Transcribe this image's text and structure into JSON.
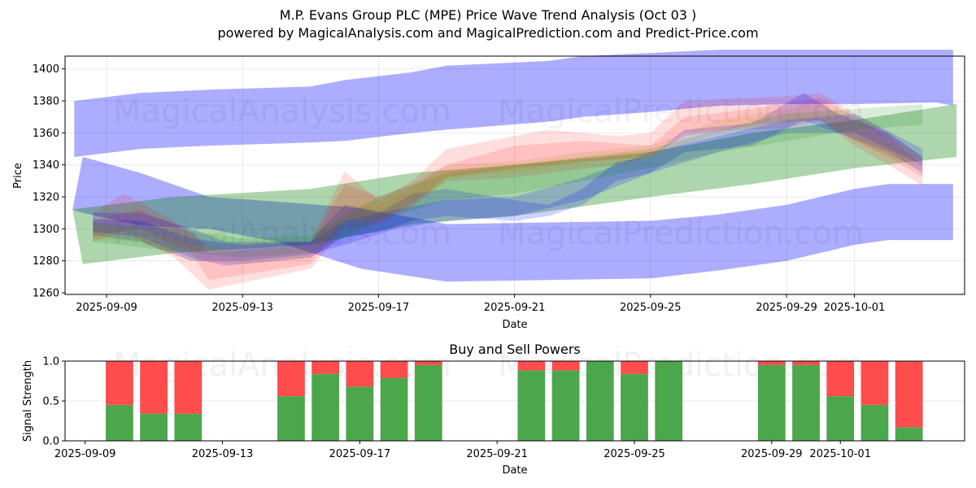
{
  "chart_data": [
    {
      "type": "area",
      "title": "M.P. Evans Group PLC (MPE) Price Wave Trend Analysis (Oct 03 )",
      "subtitle": "powered by MagicalAnalysis.com and MagicalPrediction.com and Predict-Price.com",
      "xlabel": "Date",
      "ylabel": "Price",
      "x_origin_date": "2025-09-09",
      "x_unit": "days since 2025-09-09",
      "xlim": [
        -1.22,
        25.24
      ],
      "ylim": [
        1259,
        1408
      ],
      "grid": true,
      "yticks": [
        1260,
        1280,
        1300,
        1320,
        1340,
        1360,
        1380,
        1400
      ],
      "xticks": [
        {
          "offset": 0,
          "label": "2025-09-09"
        },
        {
          "offset": 4,
          "label": "2025-09-13"
        },
        {
          "offset": 8,
          "label": "2025-09-17"
        },
        {
          "offset": 12,
          "label": "2025-09-21"
        },
        {
          "offset": 16,
          "label": "2025-09-25"
        },
        {
          "offset": 20,
          "label": "2025-09-29"
        },
        {
          "offset": 22,
          "label": "2025-10-01"
        }
      ],
      "watermarks": [
        "MagicalAnalysis.com",
        "MagicalPrediction.com"
      ],
      "bands": [
        {
          "name": "upper-wave-band",
          "color": "#0000ff",
          "opacity": 0.32,
          "x": [
            -0.95,
            1,
            3,
            6,
            7,
            9,
            10,
            13,
            14,
            16,
            18,
            20,
            22,
            24.4,
            24.9
          ],
          "upper": [
            1380,
            1385,
            1387,
            1389,
            1393,
            1398,
            1402,
            1405,
            1408,
            1410,
            1412,
            1412,
            1412,
            1412,
            1412
          ],
          "lower": [
            1345,
            1350,
            1352,
            1354,
            1355,
            1360,
            1362,
            1367,
            1370,
            1373,
            1377,
            1378,
            1378,
            1379,
            1377
          ]
        },
        {
          "name": "lower-wave-band",
          "color": "#0000ff",
          "opacity": 0.32,
          "x": [
            -1.0,
            -0.7,
            1,
            3,
            5,
            7.5,
            10,
            13,
            16,
            18,
            20,
            21,
            22,
            23,
            24.9
          ],
          "upper": [
            1312,
            1345,
            1335,
            1320,
            1317,
            1313,
            1303,
            1304,
            1305,
            1309,
            1315,
            1320,
            1325,
            1328,
            1328
          ],
          "lower": [
            1312,
            1310,
            1302,
            1300,
            1292,
            1275,
            1267,
            1268,
            1269,
            1274,
            1280,
            1285,
            1290,
            1293,
            1293
          ]
        },
        {
          "name": "trend-channel-band",
          "color": "#008000",
          "opacity": 0.32,
          "x": [
            -1.0,
            -0.7,
            2,
            6,
            9,
            12,
            16,
            19,
            22,
            25
          ],
          "upper": [
            1312,
            1313,
            1320,
            1325,
            1335,
            1340,
            1348,
            1360,
            1368,
            1378
          ],
          "lower": [
            1312,
            1278,
            1285,
            1290,
            1303,
            1308,
            1320,
            1328,
            1338,
            1345
          ]
        },
        {
          "name": "price-path-band-red-1",
          "color": "#ff0000",
          "opacity": 0.13,
          "x": [
            -0.4,
            0.5,
            2,
            3,
            6,
            7,
            8,
            9,
            10,
            12,
            13,
            15,
            16,
            17,
            19,
            20,
            21,
            22,
            23,
            24
          ],
          "upper": [
            1310,
            1322,
            1305,
            1290,
            1292,
            1336,
            1318,
            1330,
            1350,
            1358,
            1362,
            1358,
            1360,
            1380,
            1382,
            1383,
            1385,
            1372,
            1360,
            1345
          ],
          "lower": [
            1292,
            1298,
            1282,
            1262,
            1275,
            1300,
            1303,
            1314,
            1330,
            1332,
            1335,
            1340,
            1345,
            1360,
            1362,
            1363,
            1368,
            1352,
            1340,
            1327
          ]
        },
        {
          "name": "price-path-band-red-2",
          "color": "#ff0000",
          "opacity": 0.13,
          "x": [
            -0.4,
            1,
            2.5,
            3,
            6,
            7,
            8,
            9,
            10,
            12,
            14,
            16,
            17,
            19,
            21,
            22,
            23,
            24
          ],
          "upper": [
            1305,
            1312,
            1298,
            1285,
            1290,
            1328,
            1320,
            1328,
            1340,
            1352,
            1355,
            1352,
            1370,
            1375,
            1382,
            1370,
            1358,
            1340
          ],
          "lower": [
            1296,
            1300,
            1285,
            1268,
            1278,
            1305,
            1305,
            1316,
            1332,
            1338,
            1342,
            1345,
            1358,
            1365,
            1368,
            1355,
            1345,
            1332
          ]
        },
        {
          "name": "price-path-band-blue-1",
          "color": "#0000ff",
          "opacity": 0.18,
          "x": [
            -0.4,
            1,
            2.5,
            3.5,
            6,
            7,
            8,
            9,
            10,
            12,
            13,
            14,
            15,
            16,
            17,
            19,
            20.5,
            21.5,
            23,
            24
          ],
          "upper": [
            1310,
            1310,
            1300,
            1292,
            1292,
            1315,
            1310,
            1322,
            1325,
            1318,
            1315,
            1325,
            1342,
            1345,
            1362,
            1366,
            1385,
            1372,
            1360,
            1345
          ],
          "lower": [
            1298,
            1295,
            1282,
            1277,
            1282,
            1295,
            1298,
            1305,
            1308,
            1305,
            1308,
            1315,
            1330,
            1335,
            1348,
            1352,
            1368,
            1360,
            1348,
            1335
          ]
        },
        {
          "name": "price-path-band-blue-2",
          "color": "#0000ff",
          "opacity": 0.18,
          "x": [
            -0.4,
            1,
            2.5,
            4,
            6,
            7,
            8.5,
            10,
            12,
            14,
            16,
            18,
            20,
            22,
            24
          ],
          "upper": [
            1306,
            1305,
            1294,
            1290,
            1292,
            1305,
            1312,
            1318,
            1320,
            1332,
            1348,
            1358,
            1368,
            1372,
            1350
          ],
          "lower": [
            1296,
            1292,
            1280,
            1280,
            1284,
            1290,
            1300,
            1305,
            1308,
            1318,
            1335,
            1348,
            1360,
            1360,
            1340
          ]
        },
        {
          "name": "price-path-band-green-1",
          "color": "#008000",
          "opacity": 0.15,
          "x": [
            -0.4,
            2,
            4,
            6,
            8,
            10,
            12,
            14,
            16,
            18,
            20,
            22,
            24
          ],
          "upper": [
            1304,
            1300,
            1294,
            1296,
            1320,
            1335,
            1340,
            1345,
            1350,
            1362,
            1372,
            1375,
            1378
          ],
          "lower": [
            1292,
            1286,
            1282,
            1285,
            1305,
            1318,
            1322,
            1330,
            1338,
            1348,
            1355,
            1362,
            1365
          ]
        },
        {
          "name": "price-path-band-orange-1",
          "color": "#b8860b",
          "opacity": 0.15,
          "x": [
            -0.4,
            1,
            2.5,
            4,
            6,
            7,
            8,
            9,
            10,
            12,
            14,
            16,
            18,
            20,
            21,
            22.5,
            24
          ],
          "upper": [
            1302,
            1300,
            1290,
            1285,
            1290,
            1315,
            1315,
            1325,
            1340,
            1342,
            1348,
            1352,
            1368,
            1375,
            1378,
            1362,
            1345
          ],
          "lower": [
            1294,
            1292,
            1280,
            1278,
            1282,
            1305,
            1305,
            1315,
            1332,
            1336,
            1342,
            1345,
            1360,
            1368,
            1368,
            1350,
            1338
          ]
        }
      ]
    },
    {
      "type": "bar",
      "title": "Buy and Sell Powers",
      "xlabel": "Date",
      "ylabel": "Signal Strength",
      "x_origin_date": "2025-09-09",
      "xlim": [
        -0.585,
        25.62
      ],
      "ylim": [
        0,
        1.0
      ],
      "grid": true,
      "yticks": [
        {
          "value": 0.0,
          "label": "0.0"
        },
        {
          "value": 0.5,
          "label": "0.5"
        },
        {
          "value": 1.0,
          "label": "1.0"
        }
      ],
      "xticks": [
        {
          "offset": 0,
          "label": "2025-09-09"
        },
        {
          "offset": 4,
          "label": "2025-09-13"
        },
        {
          "offset": 8,
          "label": "2025-09-17"
        },
        {
          "offset": 12,
          "label": "2025-09-21"
        },
        {
          "offset": 16,
          "label": "2025-09-25"
        },
        {
          "offset": 20,
          "label": "2025-09-29"
        },
        {
          "offset": 22,
          "label": "2025-10-01"
        }
      ],
      "categories": [
        "2025-09-10",
        "2025-09-11",
        "2025-09-12",
        "2025-09-15",
        "2025-09-16",
        "2025-09-17",
        "2025-09-18",
        "2025-09-19",
        "2025-09-22",
        "2025-09-23",
        "2025-09-24",
        "2025-09-25",
        "2025-09-26",
        "2025-09-29",
        "2025-09-30",
        "2025-10-01",
        "2025-10-02",
        "2025-10-03"
      ],
      "offsets": [
        1,
        2,
        3,
        6,
        7,
        8,
        9,
        10,
        13,
        14,
        15,
        16,
        17,
        20,
        21,
        22,
        23,
        24
      ],
      "series": [
        {
          "name": "Buy Power",
          "color": "#4ca64c",
          "values": [
            0.45,
            0.34,
            0.34,
            0.56,
            0.84,
            0.68,
            0.79,
            0.95,
            0.885,
            0.885,
            1.0,
            0.84,
            1.0,
            0.95,
            0.95,
            0.56,
            0.45,
            0.17
          ]
        },
        {
          "name": "Sell Power",
          "color": "#ff4c4c",
          "values": [
            0.55,
            0.66,
            0.66,
            0.44,
            0.16,
            0.32,
            0.21,
            0.05,
            0.115,
            0.115,
            0.0,
            0.16,
            0.0,
            0.05,
            0.05,
            0.44,
            0.55,
            0.83
          ]
        }
      ],
      "watermarks": [
        "MagicalAnalysis.com",
        "MagicalPrediction.com"
      ]
    }
  ]
}
